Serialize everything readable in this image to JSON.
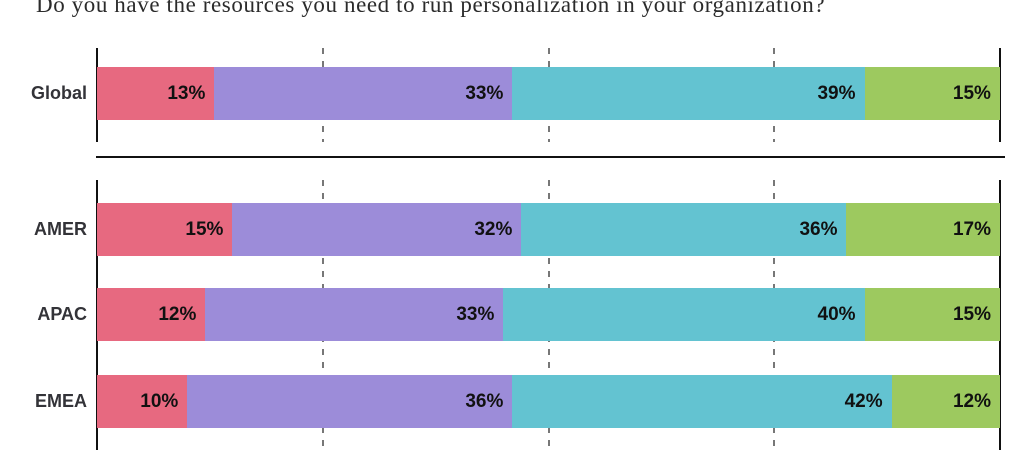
{
  "title": "Do you have the resources you need to run personalization in your organization?",
  "colors": {
    "segment_colors": [
      "#E76980",
      "#9C8CD9",
      "#63C3D1",
      "#9DC95F"
    ],
    "axis_line": "#111111",
    "gridline": "#777777",
    "row_label_text": "#333338",
    "value_text": "#111111",
    "title_text": "#2b2b2b"
  },
  "chart_data": {
    "type": "bar",
    "stacked": true,
    "orientation": "horizontal",
    "title": "Do you have the resources you need to run personalization in your organization?",
    "unit": "%",
    "xlim": [
      0,
      100
    ],
    "gridlines_percent": [
      0,
      25,
      50,
      75,
      100
    ],
    "grid": "dashed-vertical",
    "legend": "none",
    "groups": [
      {
        "name": "global",
        "rows": [
          {
            "label": "Global",
            "values": [
              13,
              33,
              39,
              15
            ]
          }
        ]
      },
      {
        "name": "regions",
        "rows": [
          {
            "label": "AMER",
            "values": [
              15,
              32,
              36,
              17
            ]
          },
          {
            "label": "APAC",
            "values": [
              12,
              33,
              40,
              15
            ]
          },
          {
            "label": "EMEA",
            "values": [
              10,
              36,
              42,
              12
            ]
          }
        ]
      }
    ]
  }
}
